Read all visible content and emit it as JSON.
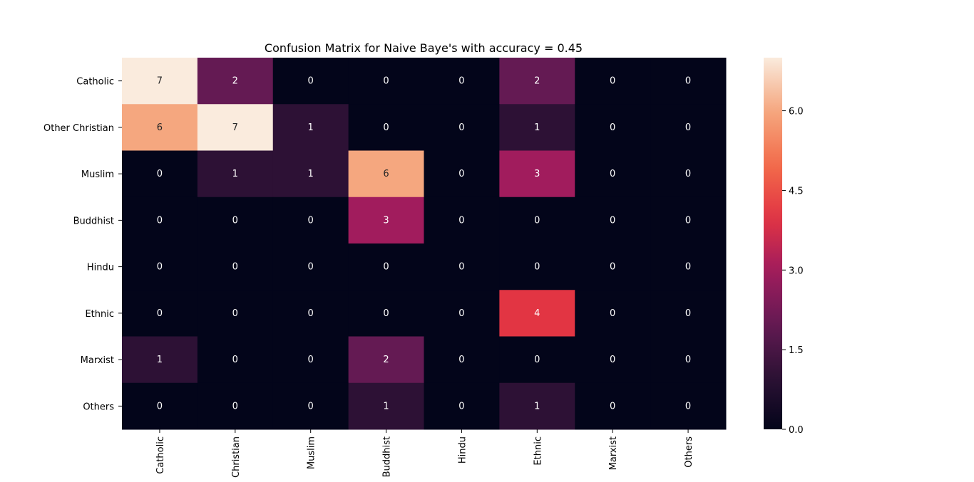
{
  "chart_data": {
    "type": "heatmap",
    "title": "Confusion Matrix for Naive Baye's with accuracy = 0.45",
    "row_labels": [
      "Catholic",
      "Other Christian",
      "Muslim",
      "Buddhist",
      "Hindu",
      "Ethnic",
      "Marxist",
      "Others"
    ],
    "col_labels": [
      "Catholic",
      "Christian",
      "Muslim",
      "Buddhist",
      "Hindu",
      "Ethnic",
      "Marxist",
      "Others"
    ],
    "values": [
      [
        7,
        2,
        0,
        0,
        0,
        2,
        0,
        0
      ],
      [
        6,
        7,
        1,
        0,
        0,
        1,
        0,
        0
      ],
      [
        0,
        1,
        1,
        6,
        0,
        3,
        0,
        0
      ],
      [
        0,
        0,
        0,
        3,
        0,
        0,
        0,
        0
      ],
      [
        0,
        0,
        0,
        0,
        0,
        0,
        0,
        0
      ],
      [
        0,
        0,
        0,
        0,
        0,
        4,
        0,
        0
      ],
      [
        1,
        0,
        0,
        2,
        0,
        0,
        0,
        0
      ],
      [
        0,
        0,
        0,
        1,
        0,
        1,
        0,
        0
      ]
    ],
    "colorbar": {
      "min": 0,
      "max": 7,
      "ticks": [
        0.0,
        1.5,
        3.0,
        4.5,
        6.0
      ],
      "tick_labels": [
        "0.0",
        "1.5",
        "3.0",
        "4.5",
        "6.0"
      ],
      "colormap": "rocket"
    },
    "annotate": true,
    "grid": false
  }
}
